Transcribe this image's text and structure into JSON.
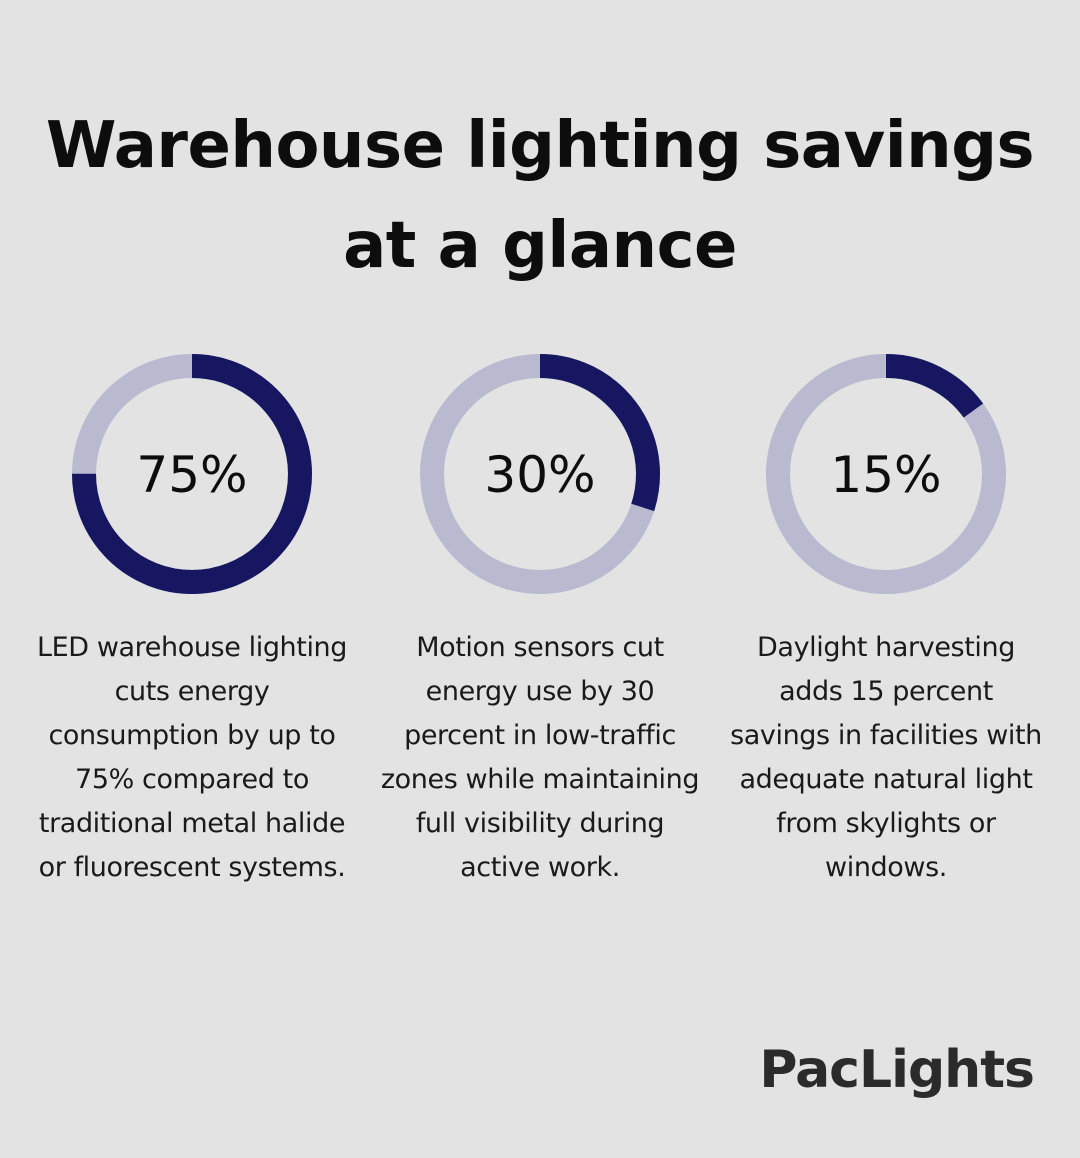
{
  "title": {
    "line1": "Warehouse lighting savings",
    "line2": "at a glance"
  },
  "colors": {
    "background": "#e2e3e2",
    "filled": "#161760",
    "track": "#b9bad0"
  },
  "chart_data": [
    {
      "type": "pie",
      "value": 75,
      "label": "75%",
      "description": "LED warehouse lighting cuts energy consumption by up to 75% compared to traditional metal halide or fluorescent systems."
    },
    {
      "type": "pie",
      "value": 30,
      "label": "30%",
      "description": "Motion sensors cut energy use by 30 percent in low-traffic zones while maintaining full visibility during active work."
    },
    {
      "type": "pie",
      "value": 15,
      "label": "15%",
      "description": "Daylight harvesting adds 15 percent savings in facilities with adequate natural light from skylights or windows."
    }
  ],
  "brand": {
    "logo_text": "PacLights"
  }
}
